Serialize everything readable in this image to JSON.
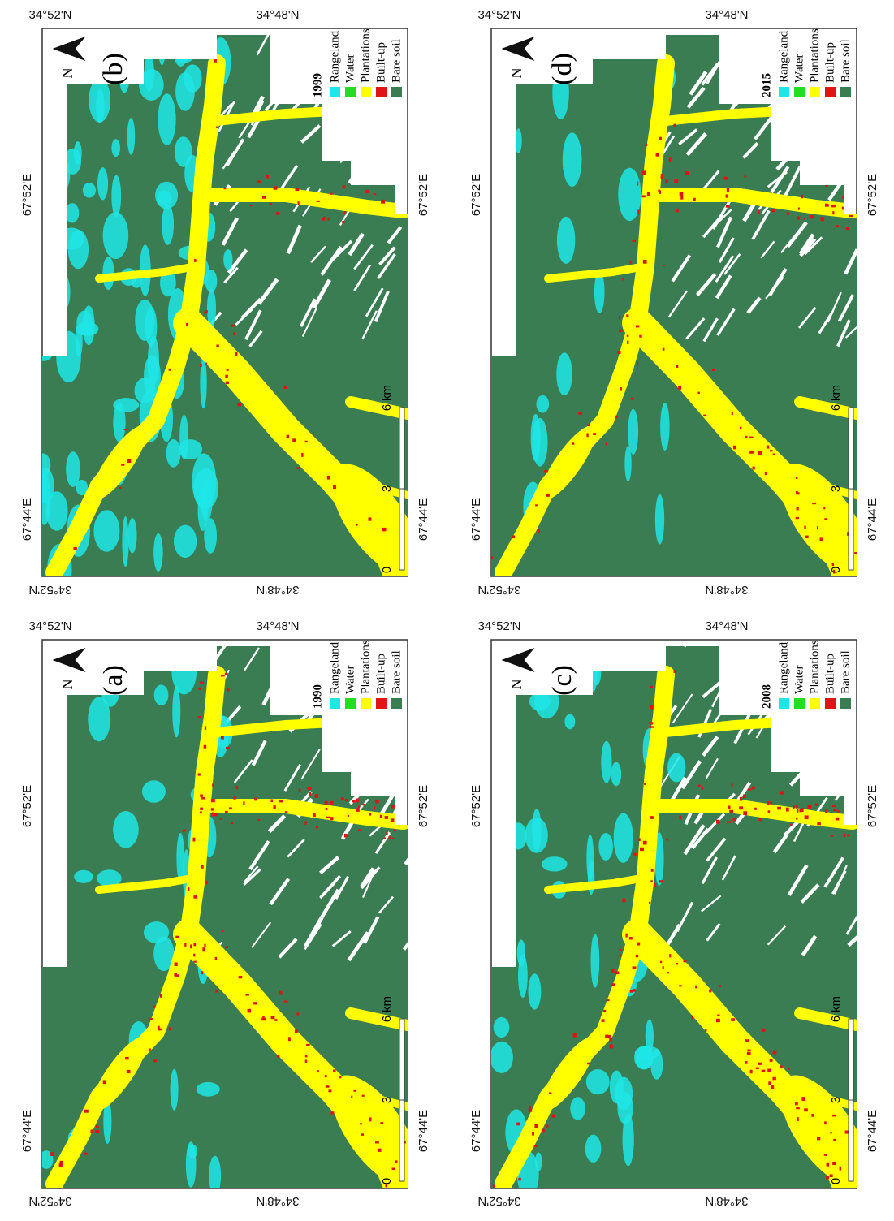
{
  "figure": {
    "north": "N",
    "lon_labels": [
      "67°44'E",
      "67°52'E"
    ],
    "lat_labels": [
      "34°52'N",
      "34°48'N"
    ],
    "scale": {
      "ticks": [
        0,
        3,
        6
      ],
      "unit": "km"
    },
    "legend": [
      {
        "label": "Rangeland",
        "color": "#1ee6e6"
      },
      {
        "label": "Water",
        "color": "#22dd22"
      },
      {
        "label": "Plantations",
        "color": "#ffff00"
      },
      {
        "label": "Built-up",
        "color": "#e01414"
      },
      {
        "label": "Bare soil",
        "color": "#3a7d52"
      }
    ],
    "panels": [
      {
        "label": "(a)",
        "year": "1990"
      },
      {
        "label": "(b)",
        "year": "1999"
      },
      {
        "label": "(c)",
        "year": "2008"
      },
      {
        "label": "(d)",
        "year": "2015"
      }
    ]
  }
}
